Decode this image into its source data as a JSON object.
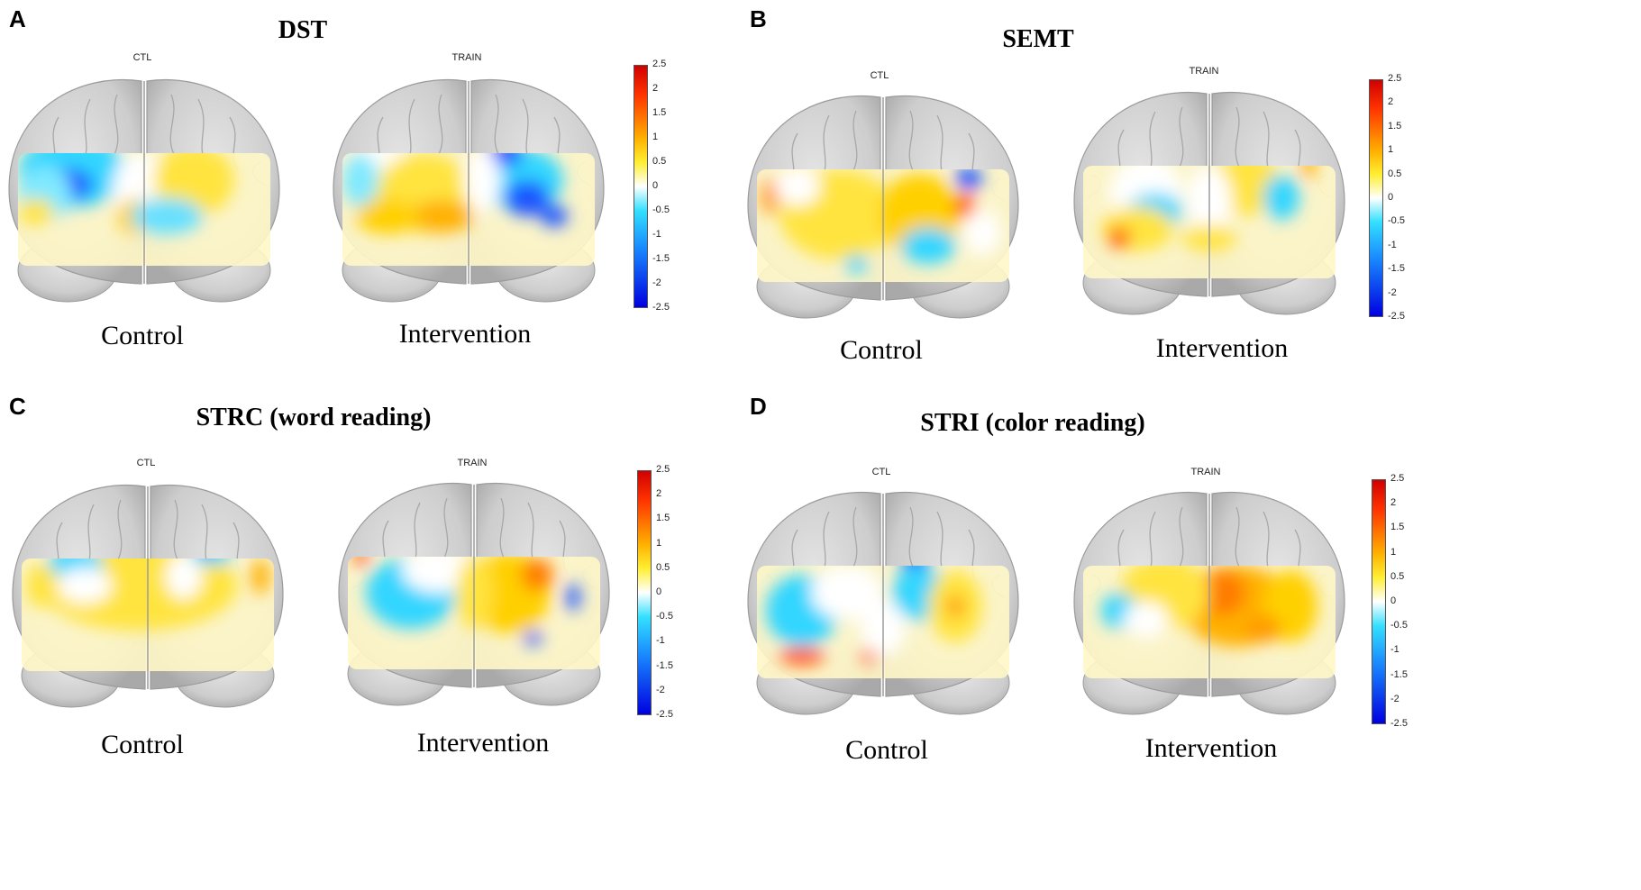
{
  "colorbar_ticks": [
    "2.5",
    "2",
    "1.5",
    "1",
    "0.5",
    "0",
    "-0.5",
    "-1",
    "-1.5",
    "-2",
    "-2.5"
  ],
  "colors": {
    "brain_gray": "#cfcfcf",
    "colormap": [
      "#0000e0",
      "#1a8cff",
      "#33e0ff",
      "#ffffff",
      "#ffef33",
      "#ffb000",
      "#ff3300",
      "#d00000"
    ]
  },
  "panels": [
    {
      "letter": "A",
      "title": "DST",
      "left_label": "CTL",
      "right_label": "TRAIN",
      "left_condition": "Control",
      "right_condition": "Intervention"
    },
    {
      "letter": "B",
      "title": "SEMT",
      "left_label": "CTL",
      "right_label": "TRAIN",
      "left_condition": "Control",
      "right_condition": "Intervention"
    },
    {
      "letter": "C",
      "title": "STRC (word reading)",
      "left_label": "CTL",
      "right_label": "TRAIN",
      "left_condition": "Control",
      "right_condition": "Intervention"
    },
    {
      "letter": "D",
      "title": "STRI (color reading)",
      "left_label": "CTL",
      "right_label": "TRAIN",
      "left_condition": "Control",
      "right_condition": "Intervention"
    }
  ]
}
